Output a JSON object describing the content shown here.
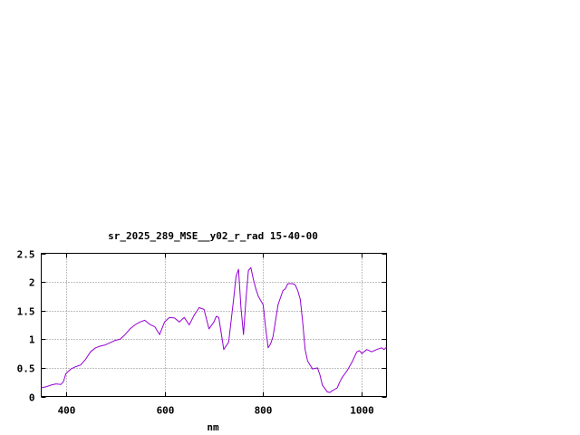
{
  "chart_data": {
    "type": "line",
    "title": "sr_2025_289_MSE__y02_r_rad 15-40-00",
    "xlabel": "nm",
    "ylabel": "",
    "xlim": [
      350,
      1050
    ],
    "ylim": [
      0,
      2.5
    ],
    "xticks": [
      {
        "value": 400,
        "label": "400"
      },
      {
        "value": 600,
        "label": "600"
      },
      {
        "value": 800,
        "label": "800"
      },
      {
        "value": 1000,
        "label": "1000"
      }
    ],
    "yticks": [
      {
        "value": 0,
        "label": "0"
      },
      {
        "value": 0.5,
        "label": "0.5"
      },
      {
        "value": 1,
        "label": "1"
      },
      {
        "value": 1.5,
        "label": "1.5"
      },
      {
        "value": 2,
        "label": "2"
      },
      {
        "value": 2.5,
        "label": "2.5"
      }
    ],
    "grid": true,
    "legend": "none",
    "series": [
      {
        "color": "#9400d3",
        "x": [
          350,
          360,
          370,
          380,
          390,
          395,
          400,
          410,
          420,
          430,
          440,
          450,
          460,
          470,
          480,
          490,
          500,
          510,
          520,
          530,
          540,
          550,
          560,
          570,
          580,
          590,
          600,
          610,
          620,
          630,
          640,
          650,
          660,
          670,
          680,
          690,
          700,
          705,
          710,
          715,
          720,
          730,
          740,
          745,
          750,
          755,
          760,
          765,
          770,
          775,
          780,
          785,
          790,
          800,
          805,
          810,
          815,
          820,
          830,
          840,
          845,
          850,
          860,
          865,
          870,
          875,
          880,
          885,
          890,
          895,
          900,
          910,
          915,
          920,
          930,
          935,
          940,
          950,
          955,
          960,
          970,
          980,
          990,
          995,
          1000,
          1010,
          1020,
          1030,
          1040,
          1045,
          1050
        ],
        "y": [
          0.15,
          0.17,
          0.2,
          0.22,
          0.21,
          0.26,
          0.4,
          0.48,
          0.52,
          0.55,
          0.65,
          0.78,
          0.85,
          0.88,
          0.9,
          0.94,
          0.98,
          1.0,
          1.08,
          1.18,
          1.25,
          1.3,
          1.33,
          1.26,
          1.22,
          1.08,
          1.3,
          1.38,
          1.37,
          1.3,
          1.38,
          1.25,
          1.42,
          1.55,
          1.52,
          1.18,
          1.3,
          1.4,
          1.38,
          1.1,
          0.82,
          0.95,
          1.7,
          2.1,
          2.22,
          1.55,
          1.08,
          1.7,
          2.2,
          2.25,
          2.05,
          1.88,
          1.75,
          1.6,
          1.2,
          0.85,
          0.92,
          1.05,
          1.6,
          1.85,
          1.88,
          1.97,
          1.97,
          1.95,
          1.85,
          1.7,
          1.3,
          0.82,
          0.62,
          0.55,
          0.48,
          0.5,
          0.38,
          0.2,
          0.08,
          0.07,
          0.1,
          0.15,
          0.25,
          0.33,
          0.45,
          0.6,
          0.78,
          0.8,
          0.75,
          0.82,
          0.78,
          0.82,
          0.85,
          0.82,
          0.86
        ]
      }
    ]
  }
}
